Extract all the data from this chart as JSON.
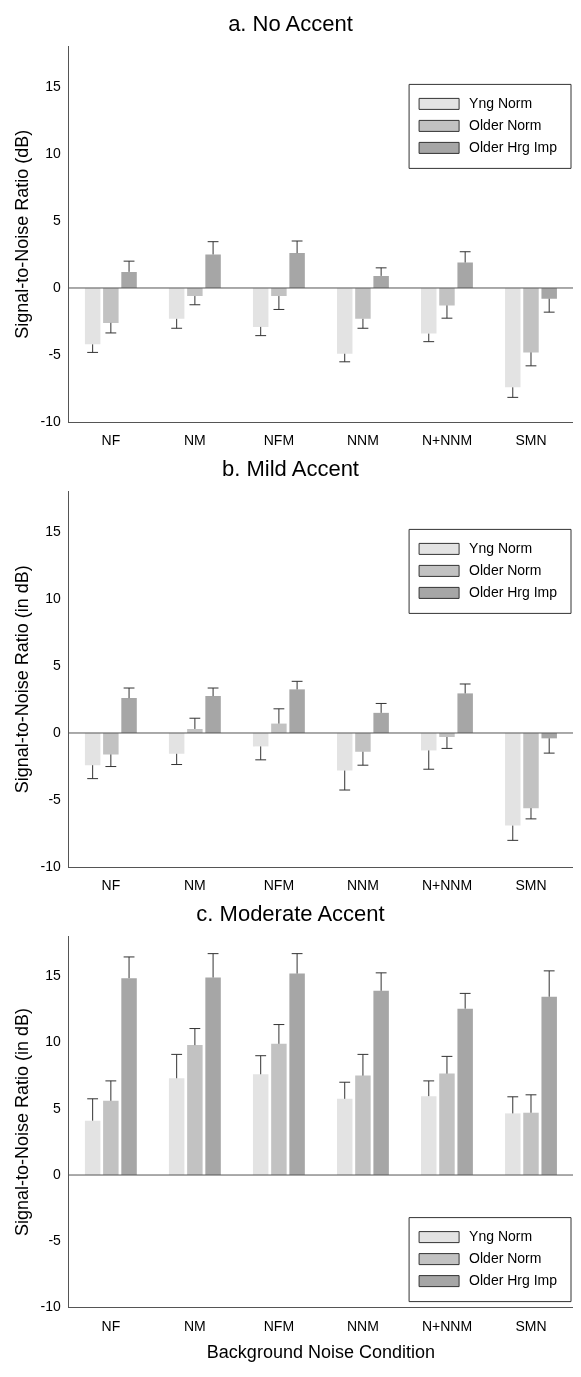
{
  "chart_data": [
    {
      "type": "bar",
      "title": "a. No Accent",
      "ylabel": "Signal-to-Noise Ratio (dB)",
      "categories": [
        "NF",
        "NM",
        "NFM",
        "NNM",
        "N+NNM",
        "SMN"
      ],
      "ylim": [
        -10,
        18
      ],
      "yticks": [
        -10,
        -5,
        0,
        5,
        10,
        15
      ],
      "legend": "top right",
      "series": [
        {
          "name": "Yng Norm",
          "color": "#e3e3e3",
          "values": [
            -4.2,
            -2.3,
            -2.9,
            -4.9,
            -3.4,
            -7.4
          ],
          "errors": [
            [
              -4.8,
              -4.2
            ],
            [
              -3.0,
              -2.3
            ],
            [
              -3.55,
              -2.9
            ],
            [
              -5.5,
              -4.9
            ],
            [
              -4.0,
              -3.4
            ],
            [
              -8.15,
              -7.4
            ]
          ]
        },
        {
          "name": "Older Norm",
          "color": "#c2c2c2",
          "values": [
            -2.6,
            -0.6,
            -0.6,
            -2.3,
            -1.3,
            -4.8
          ],
          "errors": [
            [
              -3.35,
              -2.6
            ],
            [
              -1.25,
              -0.6
            ],
            [
              -1.6,
              -0.6
            ],
            [
              -3.0,
              -2.3
            ],
            [
              -2.25,
              -1.3
            ],
            [
              -5.8,
              -4.8
            ]
          ]
        },
        {
          "name": "Older Hrg Imp",
          "color": "#a6a6a6",
          "values": [
            1.2,
            2.5,
            2.6,
            0.9,
            1.9,
            -0.8
          ],
          "errors": [
            [
              1.2,
              2.0
            ],
            [
              2.5,
              3.45
            ],
            [
              2.6,
              3.5
            ],
            [
              0.9,
              1.5
            ],
            [
              1.9,
              2.7
            ],
            [
              -1.8,
              -0.8
            ]
          ]
        }
      ]
    },
    {
      "type": "bar",
      "title": "b. Mild Accent",
      "ylabel": "Signal-to-Noise Ratio (in dB)",
      "categories": [
        "NF",
        "NM",
        "NFM",
        "NNM",
        "N+NNM",
        "SMN"
      ],
      "ylim": [
        -10,
        18
      ],
      "yticks": [
        -10,
        -5,
        0,
        5,
        10,
        15
      ],
      "legend": "top right",
      "series": [
        {
          "name": "Yng Norm",
          "color": "#e3e3e3",
          "values": [
            -2.4,
            -1.55,
            -1.0,
            -2.8,
            -1.3,
            -6.9
          ],
          "errors": [
            [
              -3.4,
              -2.4
            ],
            [
              -2.35,
              -1.55
            ],
            [
              -2.0,
              -1.0
            ],
            [
              -4.25,
              -2.8
            ],
            [
              -2.7,
              -1.3
            ],
            [
              -8.0,
              -6.9
            ]
          ]
        },
        {
          "name": "Older Norm",
          "color": "#c2c2c2",
          "values": [
            -1.6,
            0.3,
            0.7,
            -1.4,
            -0.3,
            -5.6
          ],
          "errors": [
            [
              -2.5,
              -1.6
            ],
            [
              0.3,
              1.1
            ],
            [
              0.7,
              1.8
            ],
            [
              -2.4,
              -1.4
            ],
            [
              -1.15,
              -0.3
            ],
            [
              -6.4,
              -5.6
            ]
          ]
        },
        {
          "name": "Older Hrg Imp",
          "color": "#a6a6a6",
          "values": [
            2.6,
            2.75,
            3.25,
            1.5,
            2.95,
            -0.4
          ],
          "errors": [
            [
              2.6,
              3.35
            ],
            [
              2.75,
              3.35
            ],
            [
              3.25,
              3.85
            ],
            [
              1.5,
              2.2
            ],
            [
              2.95,
              3.65
            ],
            [
              -1.5,
              -0.4
            ]
          ]
        }
      ]
    },
    {
      "type": "bar",
      "title": "c. Moderate Accent",
      "xlabel": "Background Noise Condition",
      "ylabel": "Signal-to-Noise Ratio (in dB)",
      "categories": [
        "NF",
        "NM",
        "NFM",
        "NNM",
        "N+NNM",
        "SMN"
      ],
      "ylim": [
        -10,
        18
      ],
      "yticks": [
        -10,
        -5,
        0,
        5,
        10,
        15
      ],
      "legend": "bottom right",
      "series": [
        {
          "name": "Yng Norm",
          "color": "#e3e3e3",
          "values": [
            4.1,
            7.3,
            7.6,
            5.75,
            5.95,
            4.65
          ],
          "errors": [
            [
              4.1,
              5.75
            ],
            [
              7.3,
              9.1
            ],
            [
              7.6,
              9.0
            ],
            [
              5.75,
              7.0
            ],
            [
              5.95,
              7.1
            ],
            [
              4.65,
              5.9
            ]
          ]
        },
        {
          "name": "Older Norm",
          "color": "#c2c2c2",
          "values": [
            5.6,
            9.8,
            9.9,
            7.5,
            7.65,
            4.7
          ],
          "errors": [
            [
              5.6,
              7.1
            ],
            [
              9.8,
              11.05
            ],
            [
              9.9,
              11.35
            ],
            [
              7.5,
              9.1
            ],
            [
              7.65,
              8.95
            ],
            [
              4.7,
              6.05
            ]
          ]
        },
        {
          "name": "Older Hrg Imp",
          "color": "#a6a6a6",
          "values": [
            14.85,
            14.9,
            15.2,
            13.9,
            12.55,
            13.45
          ],
          "errors": [
            [
              14.85,
              16.45
            ],
            [
              14.9,
              16.7
            ],
            [
              15.2,
              16.7
            ],
            [
              13.9,
              15.25
            ],
            [
              12.55,
              13.7
            ],
            [
              13.45,
              15.4
            ]
          ]
        }
      ]
    }
  ]
}
